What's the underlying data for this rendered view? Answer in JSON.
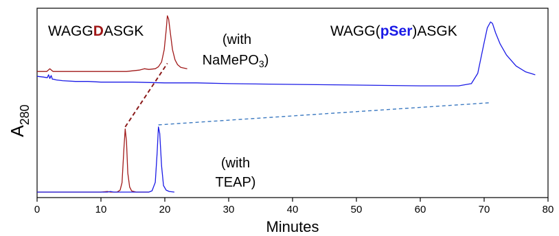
{
  "chart_data": {
    "type": "line",
    "title": "",
    "xlabel": "Minutes",
    "ylabel": "A",
    "ylabel_subscript": "280",
    "xlim": [
      0,
      80
    ],
    "x_ticks": [
      0,
      10,
      20,
      30,
      40,
      50,
      60,
      70,
      80
    ],
    "y_ticks": [],
    "grid": false,
    "legend": "none",
    "colors": {
      "aspartate": "#a01818",
      "phosphoserine": "#1a1ae6",
      "frame": "#000000"
    },
    "annotations": {
      "peptide_d": {
        "prefix": "WAGG",
        "highlight": "D",
        "suffix": "ASGK",
        "highlight_color": "#a01818"
      },
      "peptide_pser": {
        "prefix": "WAGG(",
        "highlight": "pSer",
        "suffix": ")ASGK",
        "highlight_color": "#1a1ae6"
      },
      "nameopo3_line1": "(with",
      "nameopo3_line2_main": "NaMePO",
      "nameopo3_line2_sub": "3",
      "nameopo3_line2_end": ")",
      "teap_line1": "(with",
      "teap_line2": "TEAP)"
    },
    "series": [
      {
        "condition": "NaMePO3",
        "peptide": "D",
        "color": "#a01818",
        "x": [
          0,
          1.5,
          2.0,
          2.5,
          5,
          8,
          10,
          12,
          14,
          15,
          16,
          16.8,
          17.5,
          18.5,
          19.0,
          19.5,
          19.9,
          20.2,
          20.4,
          20.6,
          20.9,
          21.2,
          21.6,
          22.0,
          22.5,
          23.0,
          23.5
        ],
        "y": [
          0.18,
          0.18,
          0.22,
          0.18,
          0.18,
          0.18,
          0.18,
          0.18,
          0.18,
          0.19,
          0.2,
          0.22,
          0.21,
          0.22,
          0.25,
          0.32,
          0.5,
          0.78,
          1.0,
          0.95,
          0.72,
          0.5,
          0.35,
          0.28,
          0.24,
          0.23,
          0.22
        ]
      },
      {
        "condition": "NaMePO3",
        "peptide": "pSer",
        "color": "#1a1ae6",
        "x": [
          0,
          1,
          1.6,
          1.8,
          2.0,
          2.2,
          2.4,
          2.6,
          3,
          4,
          6,
          8,
          10,
          15,
          20,
          25,
          30,
          40,
          50,
          60,
          66,
          68,
          69,
          70,
          70.5,
          71,
          71.3,
          71.8,
          72.5,
          73.5,
          75,
          76.5,
          78
        ],
        "y": [
          0.26,
          0.25,
          0.24,
          0.28,
          0.23,
          0.27,
          0.22,
          0.22,
          0.21,
          0.2,
          0.19,
          0.19,
          0.18,
          0.18,
          0.17,
          0.17,
          0.16,
          0.15,
          0.14,
          0.13,
          0.13,
          0.16,
          0.3,
          0.72,
          0.92,
          1.0,
          0.98,
          0.85,
          0.7,
          0.55,
          0.4,
          0.32,
          0.28
        ]
      },
      {
        "condition": "TEAP",
        "peptide": "D",
        "color": "#a01818",
        "x": [
          0,
          5,
          10,
          11.0,
          11.5,
          12.0,
          12.5,
          13.0,
          13.3,
          13.6,
          13.8,
          14.0,
          14.2,
          14.5,
          14.8,
          15.5,
          16.5,
          17.5
        ],
        "y": [
          0.0,
          0.0,
          0.0,
          0.01,
          0.0,
          0.0,
          0.0,
          0.03,
          0.15,
          0.7,
          1.0,
          0.8,
          0.3,
          0.08,
          0.02,
          0.0,
          0.0,
          0.0
        ]
      },
      {
        "condition": "TEAP",
        "peptide": "pSer",
        "color": "#1a1ae6",
        "x": [
          0,
          5,
          11.0,
          11.5,
          12.0,
          14,
          16,
          17.5,
          18.0,
          18.5,
          18.8,
          19.0,
          19.2,
          19.5,
          19.8,
          20.2,
          20.7,
          21.5
        ],
        "y": [
          0.0,
          0.0,
          0.0,
          0.01,
          0.0,
          0.0,
          0.0,
          0.0,
          0.02,
          0.15,
          0.6,
          1.0,
          0.9,
          0.4,
          0.1,
          0.03,
          0.01,
          0.0
        ]
      }
    ],
    "connectors": [
      {
        "color": "#8b1a1a",
        "style": "dashed",
        "from_x": 13.8,
        "to_x": 20.4
      },
      {
        "color": "#3a78c0",
        "style": "dashed",
        "from_x": 19.0,
        "to_x": 71.0
      }
    ]
  }
}
